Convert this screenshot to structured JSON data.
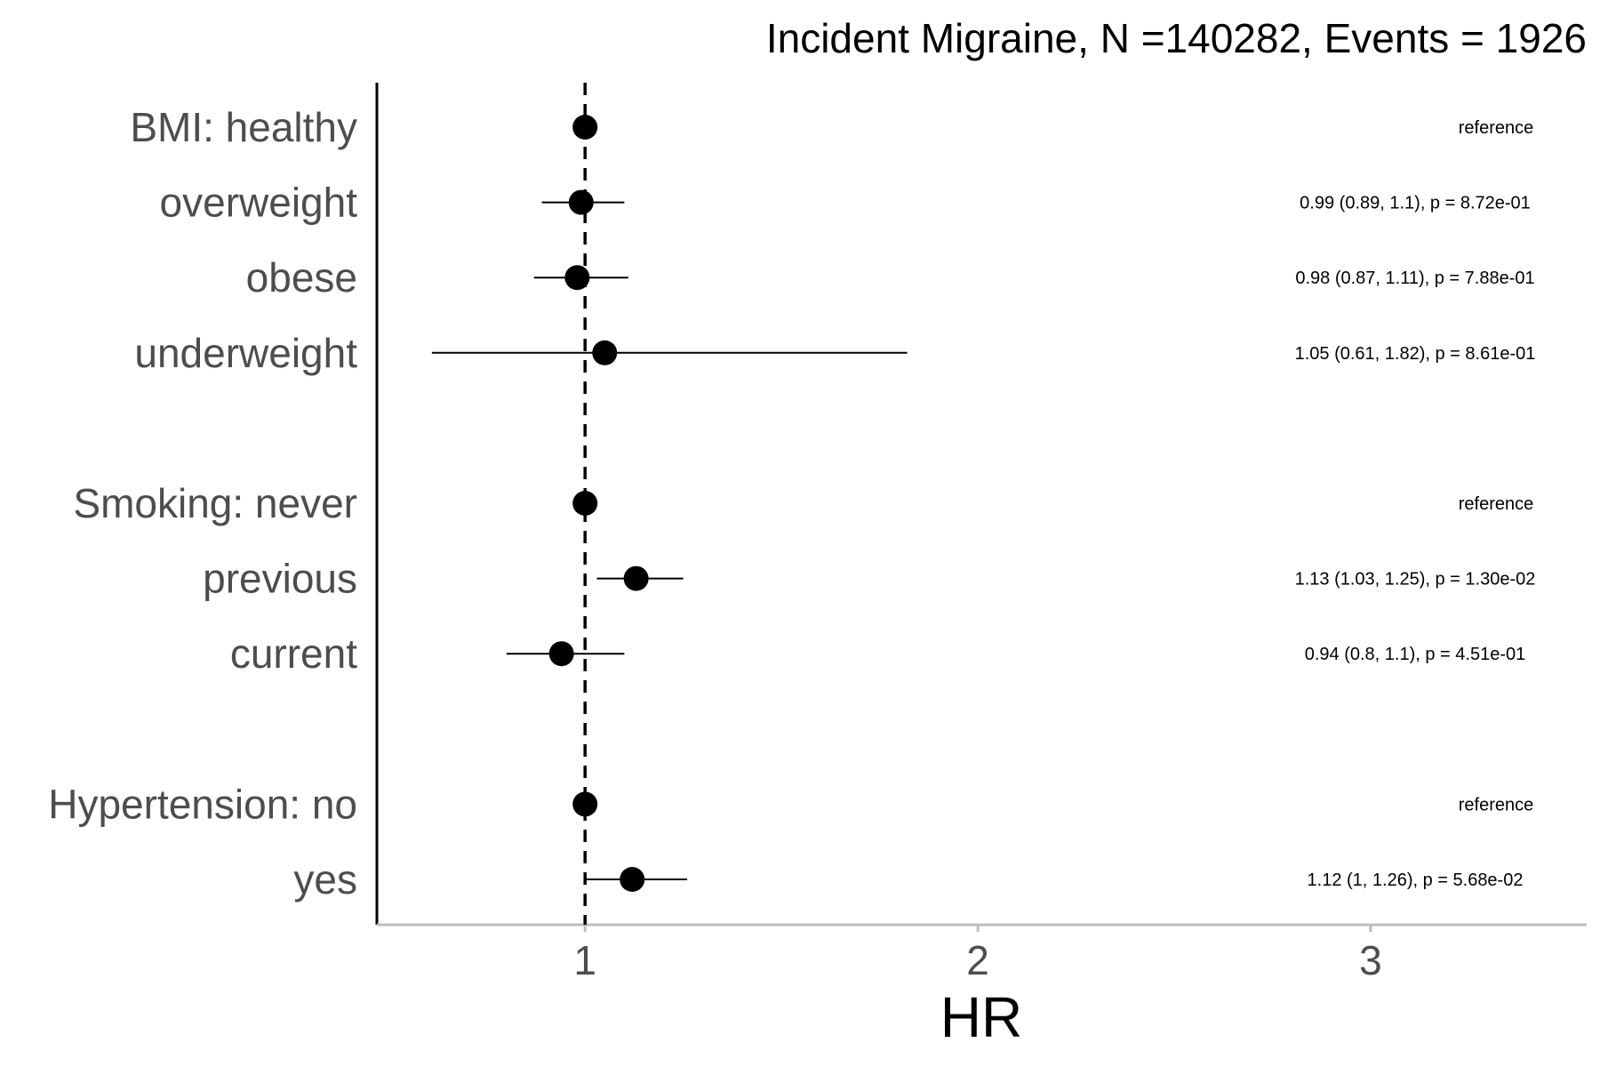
{
  "chart_data": {
    "type": "forest",
    "title": "Incident Migraine, N =140282, Events = 1926",
    "xlabel": "HR",
    "xlim": [
      0.47,
      3.55
    ],
    "x_ticks": [
      1,
      2,
      3
    ],
    "reference_line": 1,
    "rows": [
      {
        "label": "BMI: healthy",
        "hr": 1.0,
        "lower": 1.0,
        "upper": 1.0,
        "annotation": "reference"
      },
      {
        "label": "overweight",
        "hr": 0.99,
        "lower": 0.89,
        "upper": 1.1,
        "annotation": "0.99 (0.89, 1.1), p = 8.72e-01"
      },
      {
        "label": "obese",
        "hr": 0.98,
        "lower": 0.87,
        "upper": 1.11,
        "annotation": "0.98 (0.87, 1.11), p = 7.88e-01"
      },
      {
        "label": "underweight",
        "hr": 1.05,
        "lower": 0.61,
        "upper": 1.82,
        "annotation": "1.05 (0.61, 1.82), p = 8.61e-01"
      },
      {
        "label": "Smoking: never",
        "hr": 1.0,
        "lower": 1.0,
        "upper": 1.0,
        "annotation": "reference"
      },
      {
        "label": "previous",
        "hr": 1.13,
        "lower": 1.03,
        "upper": 1.25,
        "annotation": "1.13 (1.03, 1.25), p = 1.30e-02"
      },
      {
        "label": "current",
        "hr": 0.94,
        "lower": 0.8,
        "upper": 1.1,
        "annotation": "0.94 (0.8, 1.1), p = 4.51e-01"
      },
      {
        "label": "Hypertension: no",
        "hr": 1.0,
        "lower": 1.0,
        "upper": 1.0,
        "annotation": "reference"
      },
      {
        "label": "yes",
        "hr": 1.12,
        "lower": 1.0,
        "upper": 1.26,
        "annotation": "1.12 (1, 1.26), p = 5.68e-02"
      }
    ],
    "grid": false,
    "legend": "none",
    "colors": {
      "point": "#000000",
      "axis_x": "#bdbdbd",
      "label": "#4d4d4d"
    }
  }
}
